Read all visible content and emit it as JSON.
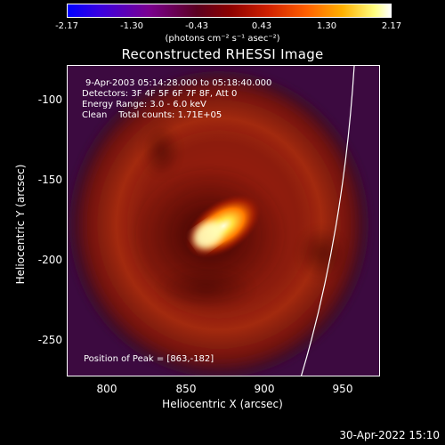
{
  "colorbar": {
    "ticks": [
      "-2.17",
      "-1.30",
      "-0.43",
      "0.43",
      "1.30",
      "2.17"
    ],
    "unit": "(photons cm⁻² s⁻¹ asec⁻²)",
    "range": [
      -2.17,
      2.17
    ]
  },
  "chart_data": {
    "type": "heatmap",
    "title": "Reconstructed RHESSI Image",
    "xlabel": "Heliocentric X (arcsec)",
    "ylabel": "Heliocentric Y (arcsec)",
    "xlim": [
      778,
      970
    ],
    "ylim": [
      -272,
      -82
    ],
    "xticks": [
      "800",
      "850",
      "900",
      "950"
    ],
    "yticks": [
      "-100",
      "-150",
      "-200",
      "-250"
    ],
    "xtick_values": [
      800,
      850,
      900,
      950
    ],
    "ytick_values": [
      -100,
      -150,
      -200,
      -250
    ],
    "peak": {
      "x": 863,
      "y": -182
    },
    "annotations": {
      "time": "9-Apr-2003 05:14:28.000 to 05:18:40.000",
      "detectors": "Detectors: 3F 4F 5F 6F 7F 8F, Att 0",
      "energy": "Energy Range: 3.0 - 6.0 keV",
      "clean": "Clean    Total counts: 1.71E+05",
      "peak_text": "Position of Peak = [863,-182]"
    }
  },
  "footer": {
    "date": "30-Apr-2022 15:10"
  }
}
